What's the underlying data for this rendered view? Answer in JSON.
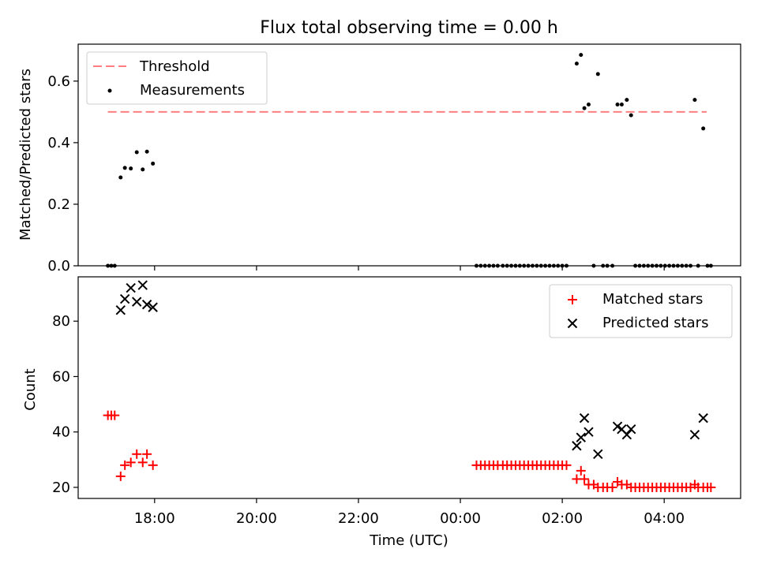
{
  "chart_data": [
    {
      "type": "scatter",
      "title": "Flux total observing time = 0.00 h",
      "ylabel": "Matched/Predicted stars",
      "xlabel": "",
      "ylim": [
        0,
        0.72
      ],
      "yticks": [
        0.0,
        0.2,
        0.4,
        0.6
      ],
      "ytick_labels": [
        "0.0",
        "0.2",
        "0.4",
        "0.6"
      ],
      "xticks": [
        "18:00",
        "20:00",
        "22:00",
        "00:00",
        "02:00",
        "04:00"
      ],
      "show_xtick_labels": false,
      "legend_position": "upper left",
      "threshold": {
        "name": "Threshold",
        "value": 0.5,
        "from": "17:05",
        "to": "04:50",
        "color": "#ff7f7f",
        "style": "dashed"
      },
      "series": [
        {
          "name": "Measurements",
          "marker": "dot",
          "color": "#000000",
          "points": [
            [
              "17:05",
              0
            ],
            [
              "17:09",
              0
            ],
            [
              "17:13",
              0
            ],
            [
              "17:20",
              0.287
            ],
            [
              "17:25",
              0.318
            ],
            [
              "17:32",
              0.316
            ],
            [
              "17:39",
              0.369
            ],
            [
              "17:46",
              0.313
            ],
            [
              "17:51",
              0.371
            ],
            [
              "17:58",
              0.332
            ],
            [
              "00:19",
              0
            ],
            [
              "00:24",
              0
            ],
            [
              "00:29",
              0
            ],
            [
              "00:34",
              0
            ],
            [
              "00:39",
              0
            ],
            [
              "00:44",
              0
            ],
            [
              "00:50",
              0
            ],
            [
              "00:55",
              0
            ],
            [
              "01:00",
              0
            ],
            [
              "01:05",
              0
            ],
            [
              "01:10",
              0
            ],
            [
              "01:15",
              0
            ],
            [
              "01:20",
              0
            ],
            [
              "01:25",
              0
            ],
            [
              "01:30",
              0
            ],
            [
              "01:35",
              0
            ],
            [
              "01:40",
              0
            ],
            [
              "01:45",
              0
            ],
            [
              "01:50",
              0
            ],
            [
              "01:55",
              0
            ],
            [
              "02:00",
              0
            ],
            [
              "02:05",
              0
            ],
            [
              "02:17",
              0.657
            ],
            [
              "02:22",
              0.685
            ],
            [
              "02:26",
              0.512
            ],
            [
              "02:31",
              0.524
            ],
            [
              "02:37",
              0
            ],
            [
              "02:42",
              0.623
            ],
            [
              "02:48",
              0
            ],
            [
              "02:53",
              0
            ],
            [
              "02:59",
              0
            ],
            [
              "03:05",
              0.524
            ],
            [
              "03:10",
              0.524
            ],
            [
              "03:16",
              0.539
            ],
            [
              "03:21",
              0.489
            ],
            [
              "03:26",
              0
            ],
            [
              "03:31",
              0
            ],
            [
              "03:36",
              0
            ],
            [
              "03:41",
              0
            ],
            [
              "03:46",
              0
            ],
            [
              "03:51",
              0
            ],
            [
              "03:56",
              0
            ],
            [
              "04:01",
              0
            ],
            [
              "04:06",
              0
            ],
            [
              "04:11",
              0
            ],
            [
              "04:16",
              0
            ],
            [
              "04:21",
              0
            ],
            [
              "04:26",
              0
            ],
            [
              "04:31",
              0
            ],
            [
              "04:36",
              0.539
            ],
            [
              "04:40",
              0
            ],
            [
              "04:46",
              0.446
            ],
            [
              "04:51",
              0
            ],
            [
              "04:55",
              0
            ]
          ]
        }
      ]
    },
    {
      "type": "scatter",
      "title": "",
      "ylabel": "Count",
      "xlabel": "Time (UTC)",
      "ylim": [
        16,
        96
      ],
      "yticks": [
        20,
        40,
        60,
        80
      ],
      "ytick_labels": [
        "20",
        "40",
        "60",
        "80"
      ],
      "xticks": [
        "18:00",
        "20:00",
        "22:00",
        "00:00",
        "02:00",
        "04:00"
      ],
      "xtick_labels": [
        "18:00",
        "20:00",
        "22:00",
        "00:00",
        "02:00",
        "04:00"
      ],
      "legend_position": "upper right",
      "series": [
        {
          "name": "Matched stars",
          "marker": "plus",
          "color": "#ff0000",
          "points": [
            [
              "17:05",
              46
            ],
            [
              "17:09",
              46
            ],
            [
              "17:13",
              46
            ],
            [
              "17:20",
              24
            ],
            [
              "17:25",
              28
            ],
            [
              "17:32",
              29
            ],
            [
              "17:39",
              32
            ],
            [
              "17:46",
              29
            ],
            [
              "17:51",
              32
            ],
            [
              "17:58",
              28
            ],
            [
              "00:19",
              28
            ],
            [
              "00:24",
              28
            ],
            [
              "00:29",
              28
            ],
            [
              "00:34",
              28
            ],
            [
              "00:39",
              28
            ],
            [
              "00:44",
              28
            ],
            [
              "00:50",
              28
            ],
            [
              "00:55",
              28
            ],
            [
              "01:00",
              28
            ],
            [
              "01:05",
              28
            ],
            [
              "01:10",
              28
            ],
            [
              "01:15",
              28
            ],
            [
              "01:20",
              28
            ],
            [
              "01:25",
              28
            ],
            [
              "01:30",
              28
            ],
            [
              "01:35",
              28
            ],
            [
              "01:40",
              28
            ],
            [
              "01:45",
              28
            ],
            [
              "01:50",
              28
            ],
            [
              "01:55",
              28
            ],
            [
              "02:00",
              28
            ],
            [
              "02:05",
              28
            ],
            [
              "02:17",
              23
            ],
            [
              "02:22",
              26
            ],
            [
              "02:26",
              23
            ],
            [
              "02:31",
              21
            ],
            [
              "02:37",
              21
            ],
            [
              "02:42",
              20
            ],
            [
              "02:48",
              20
            ],
            [
              "02:53",
              20
            ],
            [
              "02:59",
              20
            ],
            [
              "03:05",
              22
            ],
            [
              "03:10",
              21
            ],
            [
              "03:16",
              21
            ],
            [
              "03:21",
              20
            ],
            [
              "03:26",
              20
            ],
            [
              "03:31",
              20
            ],
            [
              "03:36",
              20
            ],
            [
              "03:41",
              20
            ],
            [
              "03:46",
              20
            ],
            [
              "03:51",
              20
            ],
            [
              "03:56",
              20
            ],
            [
              "04:01",
              20
            ],
            [
              "04:06",
              20
            ],
            [
              "04:11",
              20
            ],
            [
              "04:16",
              20
            ],
            [
              "04:21",
              20
            ],
            [
              "04:26",
              20
            ],
            [
              "04:31",
              20
            ],
            [
              "04:36",
              21
            ],
            [
              "04:40",
              20
            ],
            [
              "04:46",
              20
            ],
            [
              "04:51",
              20
            ],
            [
              "04:55",
              20
            ]
          ]
        },
        {
          "name": "Predicted stars",
          "marker": "x",
          "color": "#000000",
          "points": [
            [
              "17:20",
              84
            ],
            [
              "17:25",
              88
            ],
            [
              "17:32",
              92
            ],
            [
              "17:39",
              87
            ],
            [
              "17:46",
              93
            ],
            [
              "17:51",
              86
            ],
            [
              "17:58",
              85
            ],
            [
              "02:17",
              35
            ],
            [
              "02:22",
              38
            ],
            [
              "02:26",
              45
            ],
            [
              "02:31",
              40
            ],
            [
              "02:42",
              32
            ],
            [
              "03:05",
              42
            ],
            [
              "03:10",
              41
            ],
            [
              "03:16",
              39
            ],
            [
              "03:21",
              41
            ],
            [
              "04:36",
              39
            ],
            [
              "04:46",
              45
            ]
          ]
        }
      ]
    }
  ]
}
